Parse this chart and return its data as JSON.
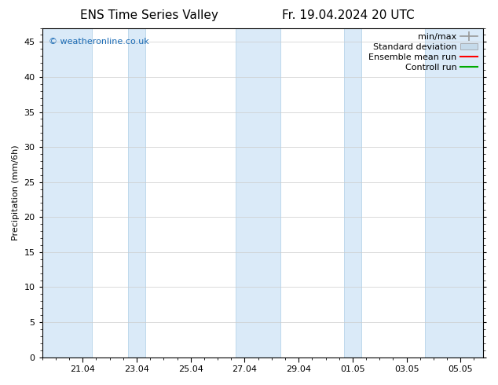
{
  "title_left": "ENS Time Series Valley",
  "title_right": "Fr. 19.04.2024 20 UTC",
  "ylabel": "Precipitation (mm/6h)",
  "ylim": [
    0,
    47
  ],
  "yticks": [
    0,
    5,
    10,
    15,
    20,
    25,
    30,
    35,
    40,
    45
  ],
  "xtick_labels": [
    "21.04",
    "23.04",
    "25.04",
    "27.04",
    "29.04",
    "01.05",
    "03.05",
    "05.05"
  ],
  "xtick_pos": [
    2,
    4,
    6,
    8,
    10,
    12,
    14,
    16
  ],
  "xlim": [
    0.5,
    16.83
  ],
  "bg_color": "#ffffff",
  "shaded_color": "#daeaf8",
  "shaded_edge_color": "#b8d4ea",
  "shaded_regions": [
    [
      0.5,
      2.33
    ],
    [
      3.67,
      4.33
    ],
    [
      7.67,
      9.33
    ],
    [
      11.67,
      12.33
    ],
    [
      14.67,
      16.83
    ]
  ],
  "watermark": "© weatheronline.co.uk",
  "watermark_color": "#1a6bb5",
  "legend_labels": [
    "min/max",
    "Standard deviation",
    "Ensemble mean run",
    "Controll run"
  ],
  "legend_colors": [
    "#999999",
    "#c5daea",
    "#ff0000",
    "#00aa00"
  ],
  "grid_color": "#cccccc",
  "tick_color": "#000000",
  "font_size_title": 11,
  "font_size_axis": 8,
  "font_size_legend": 8,
  "font_size_watermark": 8
}
